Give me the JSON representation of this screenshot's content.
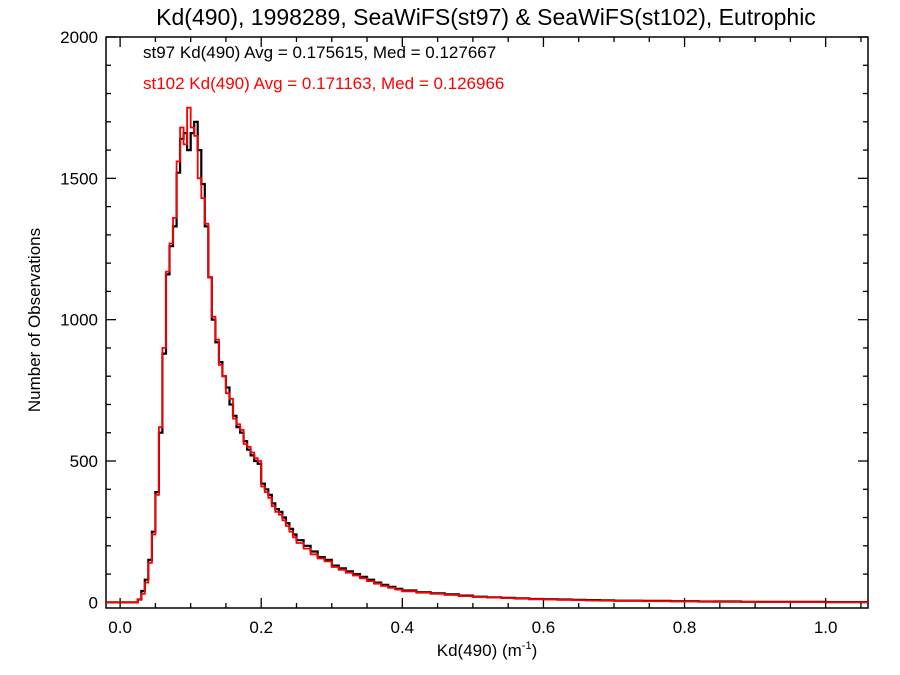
{
  "chart_data": {
    "type": "line",
    "title": "Kd(490), 1998289, SeaWiFS(st97) & SeaWiFS(st102), Eutrophic",
    "xlabel_main": "Kd(490) (m",
    "xlabel_sup": "-1",
    "xlabel_end": ")",
    "ylabel": "Number of Observations",
    "xlim": [
      -0.02,
      1.06
    ],
    "ylim": [
      -20,
      2000
    ],
    "xticks": [
      0.0,
      0.2,
      0.4,
      0.6,
      0.8,
      1.0
    ],
    "xtick_labels": [
      "0.0",
      "0.2",
      "0.4",
      "0.6",
      "0.8",
      "1.0"
    ],
    "yticks": [
      0,
      500,
      1000,
      1500,
      2000
    ],
    "ytick_labels": [
      "0",
      "500",
      "1000",
      "1500",
      "2000"
    ],
    "bin_width": 0.005,
    "colors": {
      "st97": "#000000",
      "st102": "#ff0000"
    },
    "annotations": [
      {
        "text": "st97 Kd(490) Avg = 0.175615, Med = 0.127667",
        "color": "#000000"
      },
      {
        "text": "st102 Kd(490) Avg = 0.171163, Med = 0.126966",
        "color": "#ff0000"
      }
    ],
    "series": [
      {
        "color": "#000000",
        "x": [
          0.0,
          0.005,
          0.01,
          0.015,
          0.02,
          0.025,
          0.03,
          0.035,
          0.04,
          0.045,
          0.05,
          0.055,
          0.06,
          0.065,
          0.07,
          0.075,
          0.08,
          0.085,
          0.09,
          0.095,
          0.1,
          0.105,
          0.11,
          0.115,
          0.12,
          0.125,
          0.13,
          0.135,
          0.14,
          0.145,
          0.15,
          0.155,
          0.16,
          0.165,
          0.17,
          0.175,
          0.18,
          0.185,
          0.19,
          0.195,
          0.2,
          0.205,
          0.21,
          0.215,
          0.22,
          0.225,
          0.23,
          0.235,
          0.24,
          0.245,
          0.25,
          0.26,
          0.27,
          0.28,
          0.29,
          0.3,
          0.31,
          0.32,
          0.33,
          0.34,
          0.35,
          0.36,
          0.37,
          0.38,
          0.39,
          0.4,
          0.42,
          0.44,
          0.46,
          0.48,
          0.5,
          0.52,
          0.54,
          0.56,
          0.58,
          0.6,
          0.62,
          0.64,
          0.66,
          0.68,
          0.7,
          0.72,
          0.74,
          0.76,
          0.78,
          0.8,
          0.82,
          0.84,
          0.86,
          0.88,
          0.9,
          0.95,
          1.0,
          1.05
        ],
        "values": [
          0,
          0,
          0,
          0,
          0,
          10,
          40,
          80,
          150,
          250,
          390,
          600,
          880,
          1160,
          1260,
          1330,
          1520,
          1640,
          1660,
          1600,
          1660,
          1700,
          1600,
          1480,
          1330,
          1150,
          1000,
          920,
          850,
          800,
          760,
          700,
          660,
          620,
          600,
          570,
          540,
          520,
          500,
          490,
          420,
          400,
          380,
          350,
          330,
          320,
          300,
          280,
          260,
          240,
          220,
          200,
          180,
          160,
          150,
          130,
          120,
          110,
          100,
          90,
          80,
          70,
          62,
          55,
          48,
          42,
          36,
          32,
          28,
          24,
          20,
          18,
          16,
          14,
          12,
          11,
          10,
          9,
          8,
          7,
          6,
          6,
          5,
          5,
          4,
          4,
          3,
          3,
          3,
          2,
          2,
          2,
          1,
          1
        ]
      },
      {
        "color": "#ff0000",
        "x": [
          0.0,
          0.005,
          0.01,
          0.015,
          0.02,
          0.025,
          0.03,
          0.035,
          0.04,
          0.045,
          0.05,
          0.055,
          0.06,
          0.065,
          0.07,
          0.075,
          0.08,
          0.085,
          0.09,
          0.095,
          0.1,
          0.105,
          0.11,
          0.115,
          0.12,
          0.125,
          0.13,
          0.135,
          0.14,
          0.145,
          0.15,
          0.155,
          0.16,
          0.165,
          0.17,
          0.175,
          0.18,
          0.185,
          0.19,
          0.195,
          0.2,
          0.205,
          0.21,
          0.215,
          0.22,
          0.225,
          0.23,
          0.235,
          0.24,
          0.245,
          0.25,
          0.26,
          0.27,
          0.28,
          0.29,
          0.3,
          0.31,
          0.32,
          0.33,
          0.34,
          0.35,
          0.36,
          0.37,
          0.38,
          0.39,
          0.4,
          0.42,
          0.44,
          0.46,
          0.48,
          0.5,
          0.52,
          0.54,
          0.56,
          0.58,
          0.6,
          0.62,
          0.64,
          0.66,
          0.68,
          0.7,
          0.72,
          0.74,
          0.76,
          0.78,
          0.8,
          0.82,
          0.84,
          0.86,
          0.88,
          0.9,
          0.95,
          1.0,
          1.05
        ],
        "values": [
          0,
          0,
          0,
          0,
          0,
          10,
          30,
          70,
          140,
          240,
          380,
          620,
          900,
          1170,
          1270,
          1360,
          1560,
          1680,
          1620,
          1750,
          1680,
          1650,
          1500,
          1430,
          1340,
          1150,
          1010,
          930,
          840,
          800,
          740,
          720,
          650,
          630,
          610,
          560,
          550,
          530,
          510,
          500,
          410,
          390,
          370,
          340,
          320,
          310,
          290,
          270,
          250,
          230,
          210,
          190,
          170,
          155,
          145,
          125,
          115,
          105,
          95,
          85,
          75,
          66,
          58,
          51,
          45,
          39,
          34,
          30,
          26,
          22,
          19,
          17,
          15,
          13,
          11,
          10,
          9,
          8,
          7,
          6,
          5,
          5,
          4,
          4,
          3,
          3,
          3,
          2,
          2,
          2,
          1,
          1,
          1,
          1
        ]
      }
    ]
  }
}
